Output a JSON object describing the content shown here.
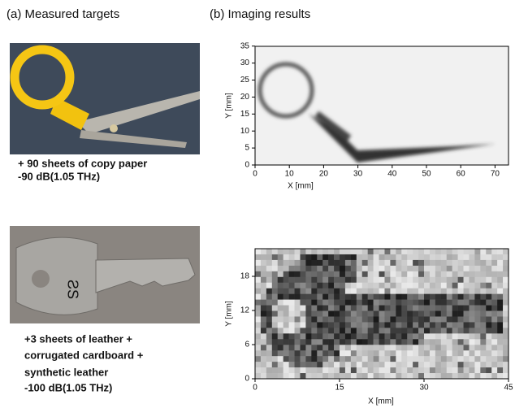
{
  "panel_a": {
    "label": "(a) Measured targets",
    "targets": [
      {
        "caption": [
          "+ 90 sheets of copy paper",
          "-90 dB(1.05 THz)"
        ]
      },
      {
        "caption": [
          "+3 sheets of leather +",
          "corrugated cardboard +",
          "synthetic leather",
          "-100 dB(1.05 THz)"
        ]
      }
    ]
  },
  "panel_b": {
    "label": "(b) Imaging results",
    "plots": [
      {
        "x_label": "X [mm]",
        "y_label": "Y [mm]",
        "xticks": [
          0,
          10,
          20,
          30,
          40,
          50,
          60,
          70
        ],
        "yticks": [
          0,
          5,
          10,
          15,
          20,
          25,
          30,
          35
        ]
      },
      {
        "x_label": "X [mm]",
        "y_label": "Y [mm]",
        "xticks": [
          0,
          15,
          30,
          45
        ],
        "yticks": [
          0,
          6,
          12,
          18
        ]
      }
    ]
  }
}
